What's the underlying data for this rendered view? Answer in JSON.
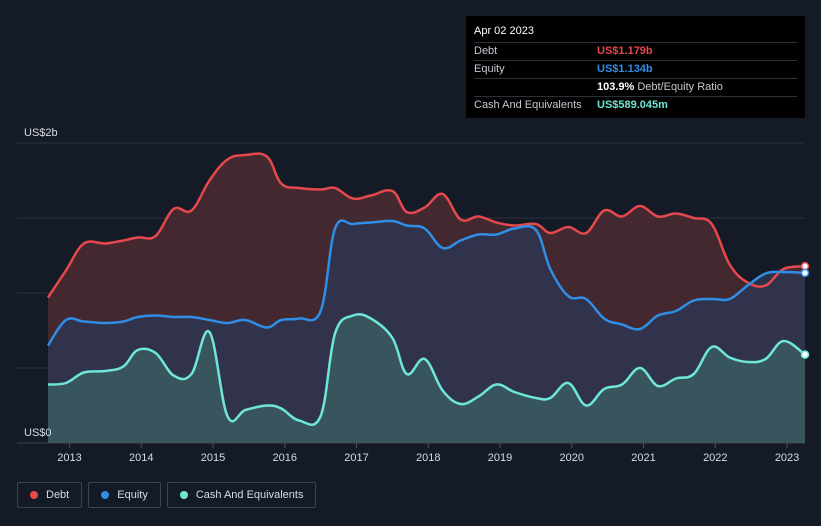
{
  "tooltip": {
    "date": "Apr 02 2023",
    "rows": [
      {
        "label": "Debt",
        "value": "US$1.179b",
        "color": "#e5484d",
        "extra": ""
      },
      {
        "label": "Equity",
        "value": "US$1.134b",
        "color": "#2f8ee6",
        "extra": ""
      },
      {
        "label": "",
        "value": "103.9%",
        "color": "#ffffff",
        "extra": "Debt/Equity Ratio"
      },
      {
        "label": "Cash And Equivalents",
        "value": "US$589.045m",
        "color": "#6ee7d6",
        "extra": ""
      }
    ]
  },
  "legend": [
    {
      "label": "Debt",
      "color": "#e5484d"
    },
    {
      "label": "Equity",
      "color": "#2f8ee6"
    },
    {
      "label": "Cash And Equivalents",
      "color": "#6ee7d6"
    }
  ],
  "chart_data": {
    "type": "area",
    "y_top_label": "US$2b",
    "y_bottom_label": "US$0",
    "ylim": [
      0,
      2.0
    ],
    "xlim": [
      2012.7,
      2023.25
    ],
    "x_ticks": [
      "2013",
      "2014",
      "2015",
      "2016",
      "2017",
      "2018",
      "2019",
      "2020",
      "2021",
      "2022",
      "2023"
    ],
    "grid": true,
    "series": [
      {
        "name": "Debt",
        "color": "#e5484d",
        "fill": "#4b2a33",
        "points": [
          [
            2012.7,
            0.97
          ],
          [
            2012.95,
            1.15
          ],
          [
            2013.2,
            1.33
          ],
          [
            2013.5,
            1.33
          ],
          [
            2013.75,
            1.35
          ],
          [
            2013.95,
            1.37
          ],
          [
            2014.2,
            1.38
          ],
          [
            2014.45,
            1.56
          ],
          [
            2014.7,
            1.55
          ],
          [
            2014.95,
            1.75
          ],
          [
            2015.2,
            1.89
          ],
          [
            2015.45,
            1.92
          ],
          [
            2015.75,
            1.91
          ],
          [
            2015.95,
            1.73
          ],
          [
            2016.2,
            1.7
          ],
          [
            2016.5,
            1.69
          ],
          [
            2016.7,
            1.7
          ],
          [
            2016.95,
            1.63
          ],
          [
            2017.2,
            1.65
          ],
          [
            2017.5,
            1.68
          ],
          [
            2017.7,
            1.54
          ],
          [
            2017.95,
            1.57
          ],
          [
            2018.2,
            1.66
          ],
          [
            2018.45,
            1.49
          ],
          [
            2018.7,
            1.51
          ],
          [
            2018.95,
            1.47
          ],
          [
            2019.2,
            1.45
          ],
          [
            2019.5,
            1.46
          ],
          [
            2019.7,
            1.4
          ],
          [
            2019.95,
            1.44
          ],
          [
            2020.2,
            1.4
          ],
          [
            2020.45,
            1.55
          ],
          [
            2020.7,
            1.51
          ],
          [
            2020.95,
            1.58
          ],
          [
            2021.2,
            1.51
          ],
          [
            2021.45,
            1.53
          ],
          [
            2021.7,
            1.5
          ],
          [
            2021.95,
            1.46
          ],
          [
            2022.2,
            1.19
          ],
          [
            2022.45,
            1.07
          ],
          [
            2022.7,
            1.05
          ],
          [
            2022.95,
            1.16
          ],
          [
            2023.25,
            1.179
          ]
        ]
      },
      {
        "name": "Equity",
        "color": "#2f8ee6",
        "fill": "#2e3552",
        "points": [
          [
            2012.7,
            0.65
          ],
          [
            2012.95,
            0.82
          ],
          [
            2013.2,
            0.81
          ],
          [
            2013.5,
            0.8
          ],
          [
            2013.75,
            0.81
          ],
          [
            2013.95,
            0.84
          ],
          [
            2014.2,
            0.85
          ],
          [
            2014.45,
            0.84
          ],
          [
            2014.7,
            0.84
          ],
          [
            2014.95,
            0.82
          ],
          [
            2015.2,
            0.8
          ],
          [
            2015.45,
            0.82
          ],
          [
            2015.75,
            0.77
          ],
          [
            2015.95,
            0.82
          ],
          [
            2016.2,
            0.83
          ],
          [
            2016.5,
            0.88
          ],
          [
            2016.7,
            1.43
          ],
          [
            2016.95,
            1.46
          ],
          [
            2017.2,
            1.47
          ],
          [
            2017.5,
            1.48
          ],
          [
            2017.7,
            1.45
          ],
          [
            2017.95,
            1.43
          ],
          [
            2018.2,
            1.3
          ],
          [
            2018.45,
            1.35
          ],
          [
            2018.7,
            1.39
          ],
          [
            2018.95,
            1.39
          ],
          [
            2019.2,
            1.43
          ],
          [
            2019.5,
            1.42
          ],
          [
            2019.7,
            1.16
          ],
          [
            2019.95,
            0.98
          ],
          [
            2020.2,
            0.96
          ],
          [
            2020.45,
            0.83
          ],
          [
            2020.7,
            0.79
          ],
          [
            2020.95,
            0.76
          ],
          [
            2021.2,
            0.85
          ],
          [
            2021.45,
            0.88
          ],
          [
            2021.7,
            0.95
          ],
          [
            2021.95,
            0.96
          ],
          [
            2022.2,
            0.96
          ],
          [
            2022.45,
            1.05
          ],
          [
            2022.7,
            1.13
          ],
          [
            2022.95,
            1.14
          ],
          [
            2023.25,
            1.134
          ]
        ]
      },
      {
        "name": "Cash And Equivalents",
        "color": "#6ee7d6",
        "fill": "#3a5a60",
        "points": [
          [
            2012.7,
            0.39
          ],
          [
            2012.95,
            0.4
          ],
          [
            2013.2,
            0.47
          ],
          [
            2013.5,
            0.48
          ],
          [
            2013.75,
            0.51
          ],
          [
            2013.95,
            0.62
          ],
          [
            2014.2,
            0.6
          ],
          [
            2014.45,
            0.45
          ],
          [
            2014.7,
            0.46
          ],
          [
            2014.95,
            0.74
          ],
          [
            2015.2,
            0.18
          ],
          [
            2015.45,
            0.22
          ],
          [
            2015.75,
            0.25
          ],
          [
            2015.95,
            0.23
          ],
          [
            2016.2,
            0.15
          ],
          [
            2016.5,
            0.18
          ],
          [
            2016.7,
            0.73
          ],
          [
            2016.95,
            0.85
          ],
          [
            2017.2,
            0.83
          ],
          [
            2017.5,
            0.7
          ],
          [
            2017.7,
            0.46
          ],
          [
            2017.95,
            0.56
          ],
          [
            2018.2,
            0.35
          ],
          [
            2018.45,
            0.26
          ],
          [
            2018.7,
            0.31
          ],
          [
            2018.95,
            0.39
          ],
          [
            2019.2,
            0.34
          ],
          [
            2019.5,
            0.3
          ],
          [
            2019.7,
            0.3
          ],
          [
            2019.95,
            0.4
          ],
          [
            2020.2,
            0.25
          ],
          [
            2020.45,
            0.36
          ],
          [
            2020.7,
            0.39
          ],
          [
            2020.95,
            0.5
          ],
          [
            2021.2,
            0.38
          ],
          [
            2021.45,
            0.43
          ],
          [
            2021.7,
            0.46
          ],
          [
            2021.95,
            0.64
          ],
          [
            2022.2,
            0.57
          ],
          [
            2022.45,
            0.54
          ],
          [
            2022.7,
            0.56
          ],
          [
            2022.95,
            0.68
          ],
          [
            2023.25,
            0.589
          ]
        ]
      }
    ]
  }
}
